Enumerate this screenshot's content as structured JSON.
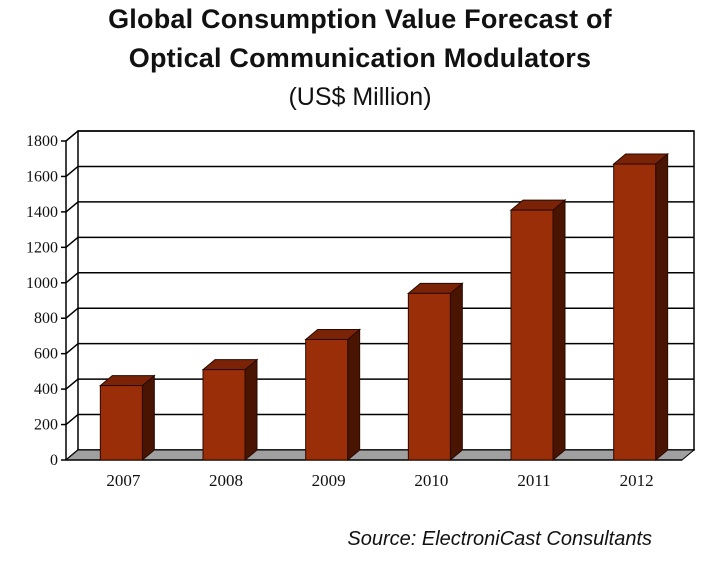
{
  "header": {
    "title_line1": "Global Consumption Value Forecast of",
    "title_line2": "Optical Communication Modulators",
    "subtitle": "(US$ Million)"
  },
  "source": "Source: ElectroniCast Consultants",
  "colors": {
    "bar_front": "#9a2e08",
    "bar_side": "#4a1403",
    "bar_top": "#7a2306",
    "grid": "#000000",
    "floor": "#a0a0a0"
  },
  "chart_data": {
    "type": "bar",
    "categories": [
      "2007",
      "2008",
      "2009",
      "2010",
      "2011",
      "2012"
    ],
    "values": [
      420,
      510,
      680,
      940,
      1410,
      1670
    ],
    "ylim": [
      0,
      1800
    ],
    "yticks": [
      "0",
      "200",
      "400",
      "600",
      "800",
      "1000",
      "1200",
      "1400",
      "1600",
      "1800"
    ],
    "grid": true,
    "style": "3d"
  }
}
